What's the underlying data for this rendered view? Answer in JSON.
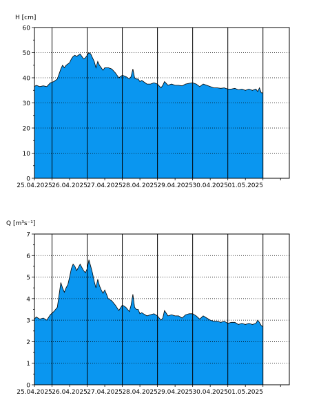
{
  "charts": [
    {
      "id": "h",
      "ylabel": "H [cm]",
      "ylim": [
        0,
        60
      ],
      "yticks": [
        0,
        10,
        20,
        30,
        40,
        50,
        60
      ],
      "xlabels": [
        "25.04.2025",
        "26.04.2025",
        "27.04.2025",
        "28.04.2025",
        "29.04.2025",
        "30.04.2025",
        "01.05.2025"
      ]
    },
    {
      "id": "q",
      "ylabel": "Q [m³s⁻¹]",
      "ylim": [
        0,
        7
      ],
      "yticks": [
        0,
        1,
        2,
        3,
        4,
        5,
        6,
        7
      ],
      "xlabels": [
        "25.04.2025",
        "26.04.2025",
        "27.04.2025",
        "28.04.2025",
        "29.04.2025",
        "30.04.2025",
        "01.05.2025"
      ]
    }
  ],
  "chart_data": [
    {
      "type": "area",
      "title": "",
      "xlabel": "",
      "ylabel": "H [cm]",
      "ylim": [
        0,
        60
      ],
      "xlim": [
        0,
        7.25
      ],
      "x_unit_note": "",
      "grid": true,
      "color": "#0A96F0",
      "series": [
        {
          "x": [
            0,
            0.05,
            0.15,
            0.25,
            0.35,
            0.45,
            0.55,
            0.65,
            0.75,
            0.8,
            0.85,
            0.9,
            0.95,
            1.0,
            1.05,
            1.1,
            1.15,
            1.2,
            1.3,
            1.4,
            1.45,
            1.5,
            1.55,
            1.6,
            1.65,
            1.7,
            1.75,
            1.8,
            1.85,
            1.9,
            1.95,
            2.0,
            2.1,
            2.2,
            2.3,
            2.4,
            2.5,
            2.6,
            2.7,
            2.75,
            2.8,
            2.85,
            2.9,
            2.95,
            3.0,
            3.05,
            3.1,
            3.2,
            3.3,
            3.4,
            3.5,
            3.6,
            3.65,
            3.7,
            3.8,
            3.9,
            4.0,
            4.1,
            4.2,
            4.3,
            4.4,
            4.5,
            4.6,
            4.7,
            4.8,
            4.9,
            5.0,
            5.1,
            5.2,
            5.3,
            5.4,
            5.5,
            5.6,
            5.7,
            5.8,
            5.9,
            6.0,
            6.1,
            6.2,
            6.3,
            6.35,
            6.4,
            6.45,
            6.5
          ],
          "y": [
            36.5,
            37,
            36.5,
            36.8,
            36.5,
            38,
            38.5,
            39.5,
            43.5,
            45,
            44,
            45,
            45.5,
            46,
            47.5,
            48.5,
            49,
            48.5,
            49.5,
            47.5,
            48,
            49,
            50,
            49.5,
            48,
            46.5,
            44,
            46.5,
            45,
            44,
            43,
            44,
            44,
            43.5,
            42,
            40,
            41,
            40.5,
            39.5,
            40.5,
            43.5,
            40,
            39.5,
            39.5,
            38.5,
            39,
            38.5,
            37.5,
            37.5,
            38,
            37.5,
            36,
            37,
            38.5,
            37,
            37.5,
            37,
            37,
            36.8,
            37.5,
            37.8,
            38,
            37.5,
            36.5,
            37.5,
            37,
            36.5,
            36,
            36,
            35.8,
            36,
            35.5,
            35.5,
            35.8,
            35.2,
            35.5,
            35,
            35.5,
            35,
            35.5,
            34.5,
            36,
            34,
            34
          ]
        }
      ]
    },
    {
      "type": "area",
      "title": "",
      "xlabel": "",
      "ylabel": "Q [m³s⁻¹]",
      "ylim": [
        0,
        7
      ],
      "xlim": [
        0,
        7.25
      ],
      "x_unit_note": "",
      "grid": true,
      "color": "#0A96F0",
      "series": [
        {
          "x": [
            0,
            0.05,
            0.15,
            0.25,
            0.35,
            0.45,
            0.55,
            0.65,
            0.75,
            0.8,
            0.85,
            0.9,
            0.95,
            1.0,
            1.05,
            1.1,
            1.15,
            1.2,
            1.3,
            1.4,
            1.45,
            1.5,
            1.55,
            1.6,
            1.65,
            1.7,
            1.75,
            1.8,
            1.85,
            1.9,
            1.95,
            2.0,
            2.1,
            2.2,
            2.3,
            2.4,
            2.5,
            2.6,
            2.7,
            2.75,
            2.8,
            2.85,
            2.9,
            2.95,
            3.0,
            3.05,
            3.1,
            3.2,
            3.3,
            3.4,
            3.5,
            3.6,
            3.65,
            3.7,
            3.8,
            3.9,
            4.0,
            4.1,
            4.2,
            4.3,
            4.4,
            4.5,
            4.6,
            4.7,
            4.8,
            4.9,
            5.0,
            5.1,
            5.2,
            5.3,
            5.4,
            5.5,
            5.6,
            5.7,
            5.8,
            5.9,
            6.0,
            6.1,
            6.2,
            6.3,
            6.35,
            6.4,
            6.45,
            6.5
          ],
          "y": [
            3.05,
            3.15,
            3.05,
            3.1,
            3.0,
            3.25,
            3.4,
            3.6,
            4.75,
            4.5,
            4.3,
            4.5,
            4.65,
            5.0,
            5.4,
            5.6,
            5.5,
            5.3,
            5.6,
            5.3,
            5.2,
            5.4,
            5.8,
            5.5,
            5.2,
            4.8,
            4.5,
            4.9,
            4.6,
            4.4,
            4.25,
            4.4,
            4.0,
            3.9,
            3.7,
            3.45,
            3.7,
            3.6,
            3.4,
            3.7,
            4.2,
            3.6,
            3.5,
            3.5,
            3.3,
            3.35,
            3.3,
            3.2,
            3.25,
            3.3,
            3.2,
            3.0,
            3.1,
            3.45,
            3.2,
            3.25,
            3.2,
            3.2,
            3.1,
            3.25,
            3.3,
            3.3,
            3.2,
            3.05,
            3.2,
            3.1,
            3.0,
            2.95,
            2.95,
            2.9,
            2.95,
            2.85,
            2.9,
            2.9,
            2.8,
            2.85,
            2.8,
            2.85,
            2.8,
            2.85,
            3.0,
            2.9,
            2.75,
            2.7
          ]
        }
      ]
    }
  ]
}
